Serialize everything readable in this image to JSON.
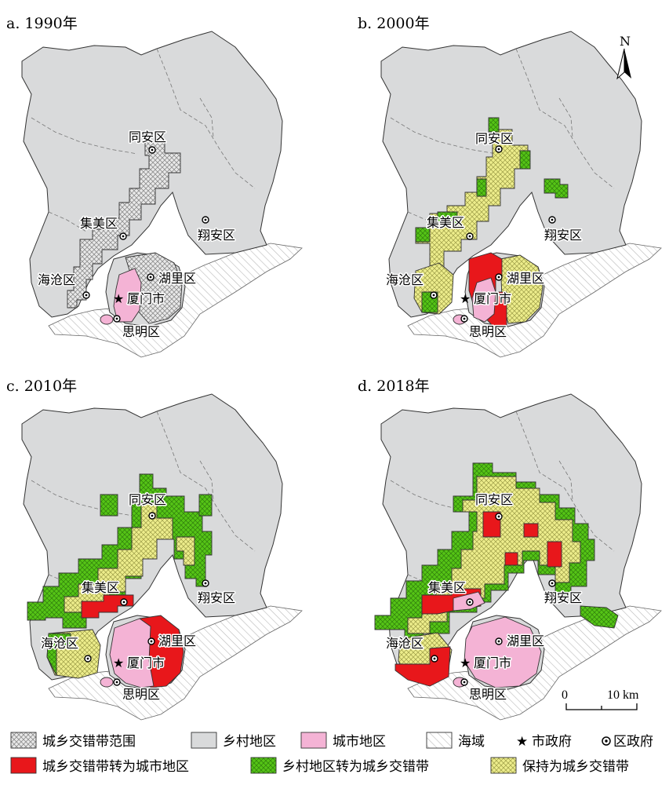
{
  "colors": {
    "rural": "#d9dadb",
    "urban": "#f4b3d5",
    "sea_stripe": "#b9b9b9",
    "to_urban": "#e8171b",
    "to_zone": "#55c416",
    "keep_zone": "#eded8c",
    "zone_hatch": "#b7b7b7"
  },
  "panels": [
    {
      "title": "a. 1990年"
    },
    {
      "title": "b. 2000年"
    },
    {
      "title": "c. 2010年"
    },
    {
      "title": "d. 2018年"
    }
  ],
  "districts": {
    "tongan": "同安区",
    "jimei": "集美区",
    "xiangan": "翔安区",
    "haicang": "海沧区",
    "huli": "湖里区",
    "xiamen": "厦门市",
    "siming": "思明区"
  },
  "north_label": "N",
  "scale": {
    "zero": "0",
    "length": "10 km"
  },
  "legend": [
    {
      "label": "城乡交错带范围",
      "symbol": "crosshatch"
    },
    {
      "label": "乡村地区",
      "symbol": "rural-fill"
    },
    {
      "label": "城市地区",
      "symbol": "urban-fill"
    },
    {
      "label": "海域",
      "symbol": "sea-hatch"
    },
    {
      "label": "市政府",
      "symbol": "star-icon"
    },
    {
      "label": "区政府",
      "symbol": "dot-circle-icon"
    },
    {
      "label": "城乡交错带转为城市地区",
      "symbol": "red-crosshatch"
    },
    {
      "label": "乡村地区转为城乡交错带",
      "symbol": "green-crosshatch"
    },
    {
      "label": "保持为城乡交错带",
      "symbol": "yellow-crosshatch"
    }
  ]
}
